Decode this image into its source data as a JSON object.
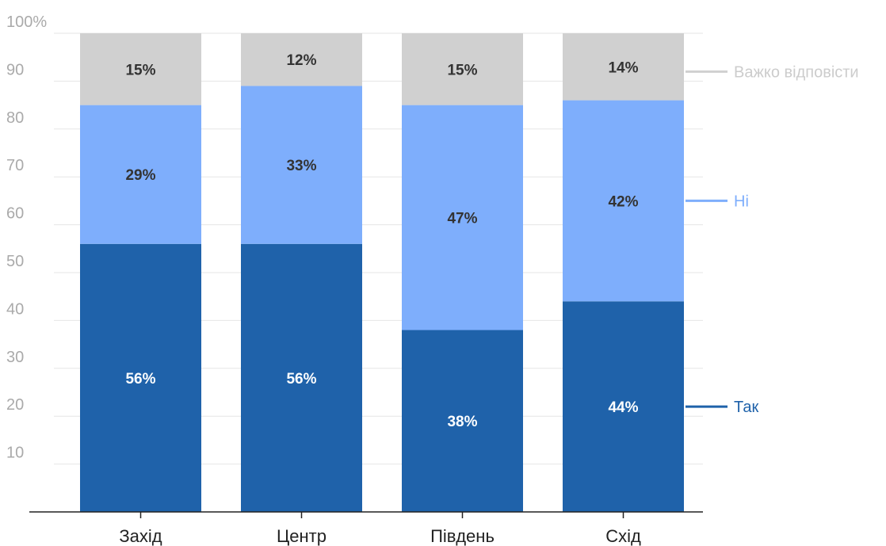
{
  "chart_data": {
    "type": "bar",
    "stacked": true,
    "categories": [
      "Захід",
      "Центр",
      "Південь",
      "Схід"
    ],
    "series": [
      {
        "name": "Так",
        "values": [
          56,
          56,
          38,
          44
        ],
        "labels": [
          "56%",
          "56%",
          "38%",
          "44%"
        ],
        "color": "#1f62aa",
        "label_color": "#ffffff"
      },
      {
        "name": "Ні",
        "values": [
          29,
          33,
          47,
          42
        ],
        "labels": [
          "29%",
          "33%",
          "47%",
          "42%"
        ],
        "color": "#7eaefc",
        "label_color": "#333333"
      },
      {
        "name": "Важко відповісти",
        "values": [
          15,
          12,
          15,
          14
        ],
        "labels": [
          "15%",
          "12%",
          "15%",
          "14%"
        ],
        "color": "#d0d0d0",
        "label_color": "#333333"
      }
    ],
    "y_ticks": [
      "10",
      "20",
      "30",
      "40",
      "50",
      "60",
      "70",
      "80",
      "90",
      "100%"
    ],
    "ylim": [
      0,
      100
    ],
    "grid": true,
    "legend": "right, inline labels",
    "legend_colors": [
      "#1f62aa",
      "#7eaefc",
      "#d0d0d0"
    ]
  }
}
